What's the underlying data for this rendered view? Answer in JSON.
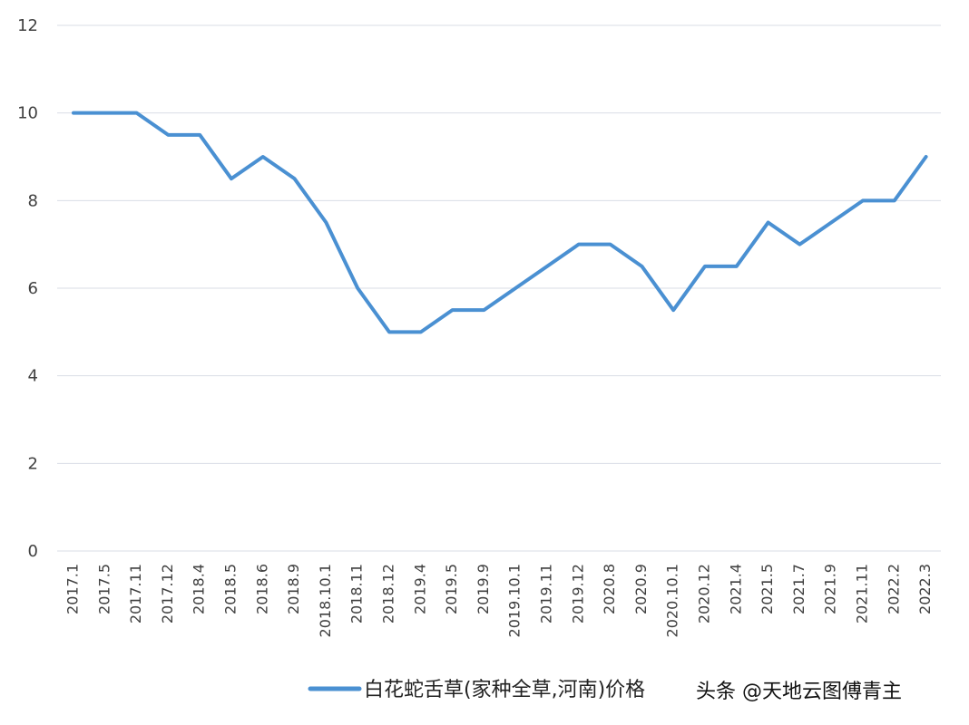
{
  "chart_data": {
    "type": "line",
    "title": "",
    "xlabel": "",
    "ylabel": "",
    "ylim": [
      0,
      12
    ],
    "yticks": [
      0,
      2,
      4,
      6,
      8,
      10,
      12
    ],
    "grid": "horizontal",
    "legend_position": "bottom",
    "categories": [
      "2017.1",
      "2017.5",
      "2017.11",
      "2017.12",
      "2018.4",
      "2018.5",
      "2018.6",
      "2018.9",
      "2018.10.1",
      "2018.11",
      "2018.12",
      "2019.4",
      "2019.5",
      "2019.9",
      "2019.10.1",
      "2019.11",
      "2019.12",
      "2020.8",
      "2020.9",
      "2020.10.1",
      "2020.12",
      "2021.4",
      "2021.5",
      "2021.7",
      "2021.9",
      "2021.11",
      "2022.2",
      "2022.3"
    ],
    "series": [
      {
        "name": "白花蛇舌草(家种全草,河南)价格",
        "color": "#4a90d2",
        "values": [
          10,
          10,
          10,
          9.5,
          9.5,
          8.5,
          9,
          8.5,
          7.5,
          6,
          5,
          5,
          5.5,
          5.5,
          6,
          6.5,
          7,
          7,
          6.5,
          5.5,
          6.5,
          6.5,
          7.5,
          7,
          7.5,
          8,
          8,
          9
        ]
      }
    ]
  },
  "watermark": "头条 @天地云图傅青主",
  "colors": {
    "grid": "#d9dde6",
    "axis_text": "#404040",
    "line": "#4a90d2"
  }
}
